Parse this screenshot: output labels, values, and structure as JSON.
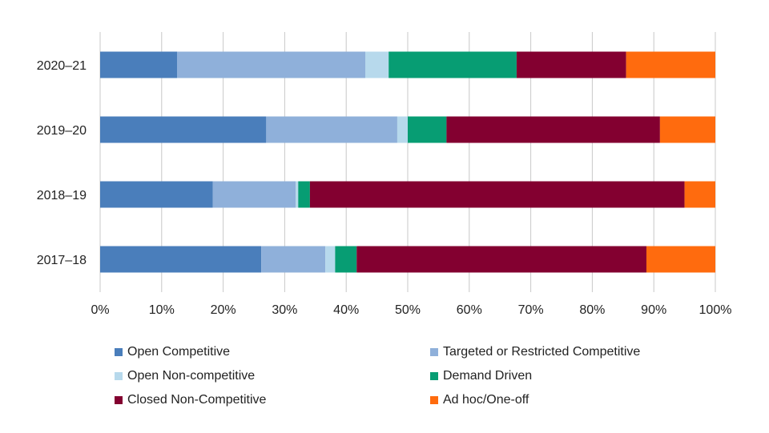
{
  "chart_data": {
    "type": "bar",
    "orientation": "horizontal",
    "stacked": "percent",
    "categories": [
      "2020–21",
      "2019–20",
      "2018–19",
      "2017–18"
    ],
    "series": [
      {
        "name": "Open Competitive",
        "color": "#4a7ebb",
        "values": [
          12.5,
          27.0,
          18.3,
          26.2
        ]
      },
      {
        "name": "Targeted or Restricted Competitive",
        "color": "#8fb0da",
        "values": [
          30.6,
          21.3,
          13.5,
          10.4
        ]
      },
      {
        "name": "Open Non-competitive",
        "color": "#b7d9ec",
        "values": [
          3.8,
          1.7,
          0.4,
          1.6
        ]
      },
      {
        "name": "Demand Driven",
        "color": "#079d73",
        "values": [
          20.8,
          6.3,
          1.9,
          3.5
        ]
      },
      {
        "name": "Closed Non-Competitive",
        "color": "#830030",
        "values": [
          17.8,
          34.7,
          60.9,
          47.1
        ]
      },
      {
        "name": "Ad hoc/One-off",
        "color": "#ff6b0e",
        "values": [
          14.5,
          9.0,
          5.0,
          11.2
        ]
      }
    ],
    "xlim": [
      0,
      100
    ],
    "xticks": [
      "0%",
      "10%",
      "20%",
      "30%",
      "40%",
      "50%",
      "60%",
      "70%",
      "80%",
      "90%",
      "100%"
    ],
    "grid": "vertical",
    "legend_position": "bottom"
  }
}
